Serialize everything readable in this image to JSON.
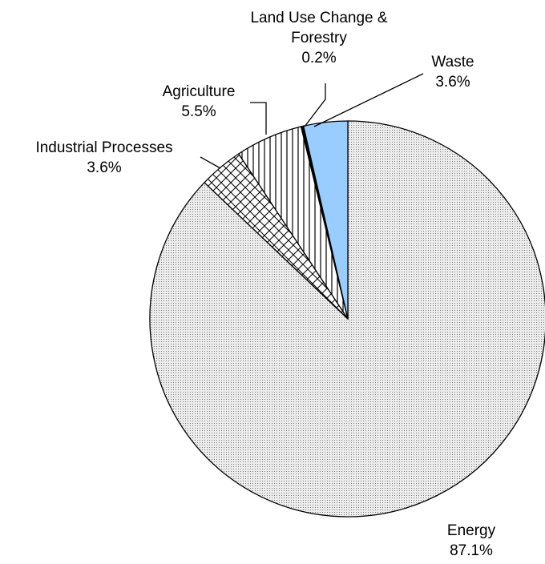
{
  "chart_data": {
    "type": "pie",
    "categories": [
      "Energy",
      "Industrial Processes",
      "Agriculture",
      "Land Use Change & Forestry",
      "Waste"
    ],
    "values": [
      87.1,
      3.6,
      5.5,
      0.2,
      3.6
    ],
    "value_labels": [
      "87.1%",
      "3.6%",
      "5.5%",
      "0.2%",
      "3.6%"
    ],
    "colors": [
      "#c8c8c8",
      "#ffffff",
      "#ffffff",
      "#000000",
      "#99ccff"
    ],
    "patterns": [
      "dots",
      "crosshatch",
      "vertical-lines",
      "solid",
      "solid"
    ]
  }
}
